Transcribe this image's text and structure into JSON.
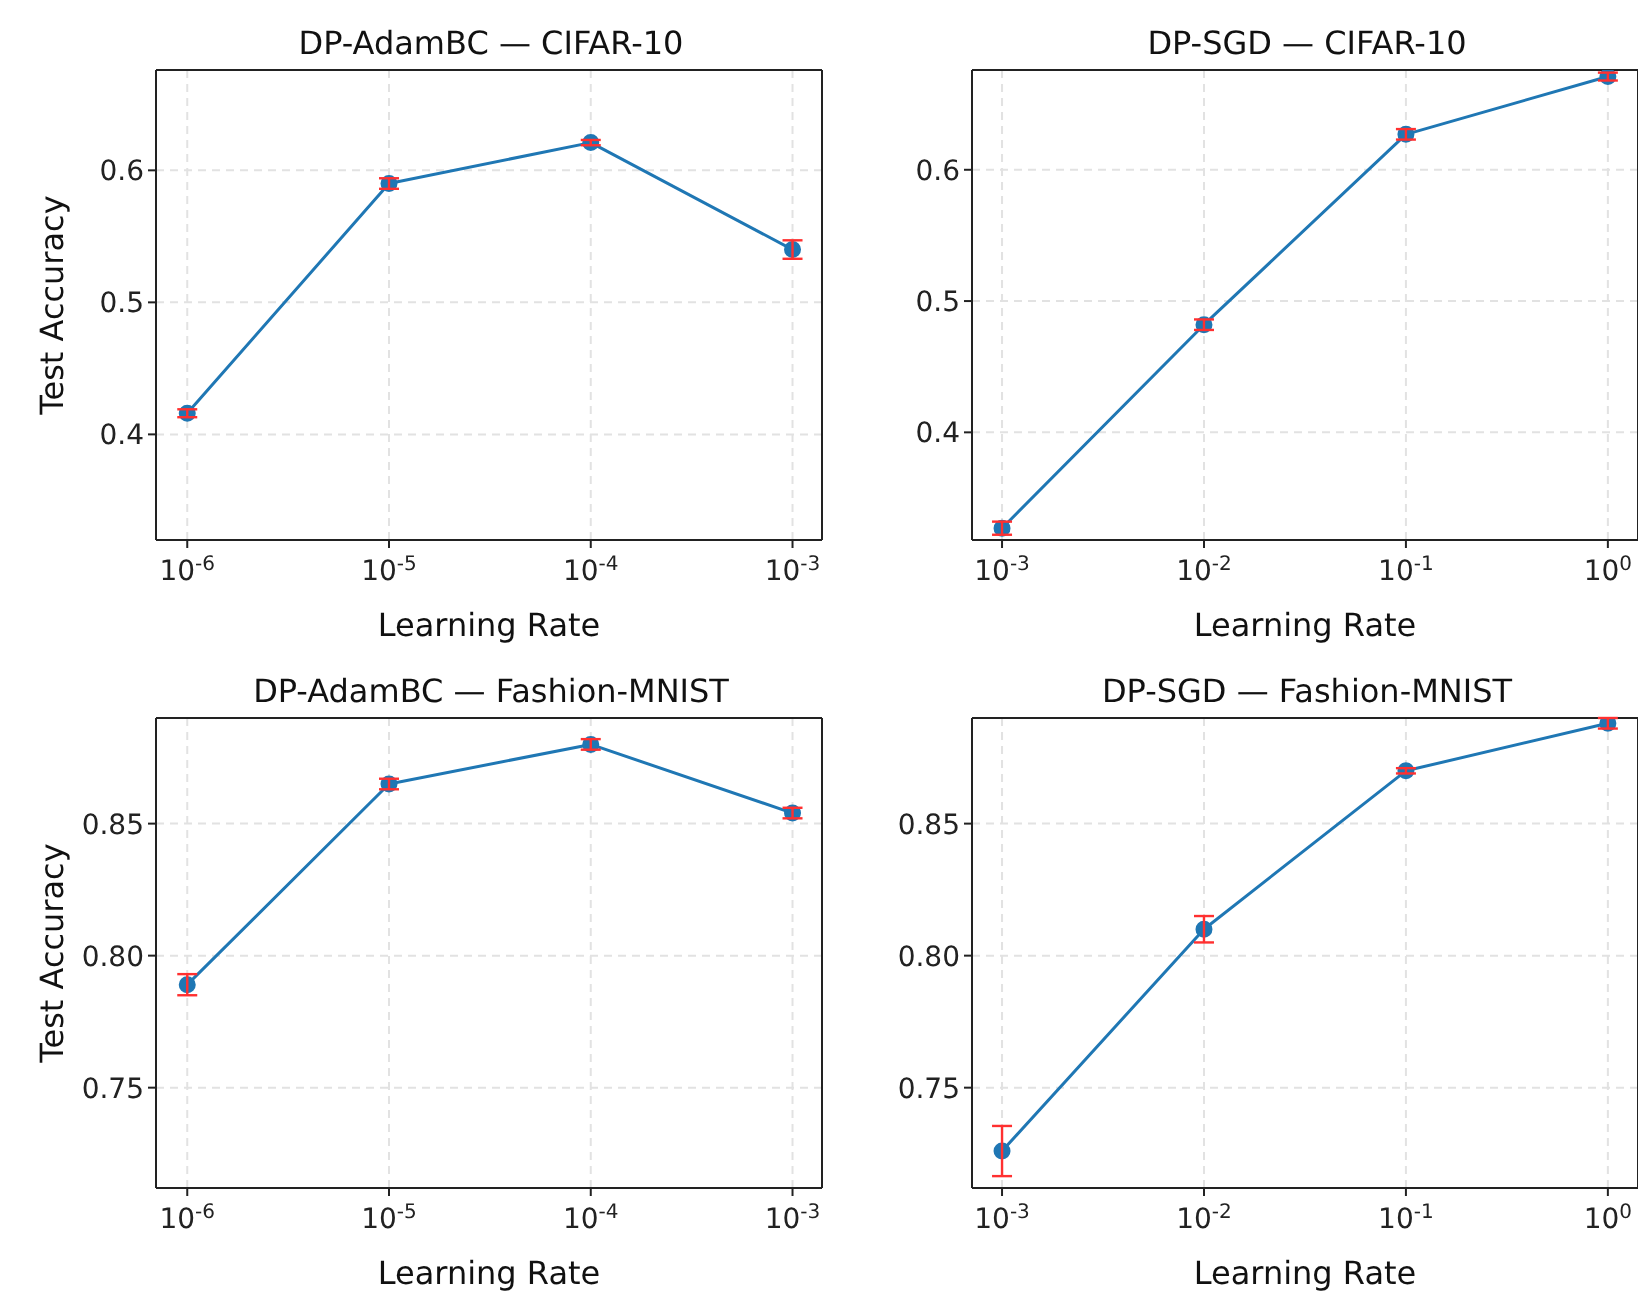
{
  "chart_data": [
    {
      "type": "line",
      "title": "DP-AdamBC — CIFAR-10",
      "xlabel": "Learning Rate",
      "ylabel": "Test Accuracy",
      "log": "x",
      "grid": true,
      "marker": "circle",
      "line_style": "solid",
      "legend": false,
      "x": [
        1e-06,
        1e-05,
        0.0001,
        0.001
      ],
      "xlim": [
        7e-07,
        0.0014
      ],
      "xticks": [
        {
          "value": 1e-06,
          "label": "10$^{-6}$"
        },
        {
          "value": 1e-05,
          "label": "10$^{-5}$"
        },
        {
          "value": 0.0001,
          "label": "10$^{-4}$"
        },
        {
          "value": 0.001,
          "label": "10$^{-3}$"
        }
      ],
      "ylim": [
        0.32,
        0.676
      ],
      "yticks": [
        0.4,
        0.5,
        0.6
      ],
      "series": [
        {
          "color": "#1f77b4",
          "values": [
            0.416,
            0.59,
            0.621,
            0.54
          ],
          "errors": [
            0.003,
            0.004,
            0.002,
            0.007
          ]
        }
      ]
    },
    {
      "type": "line",
      "title": "DP-SGD — CIFAR-10",
      "xlabel": "Learning Rate",
      "log": "x",
      "grid": true,
      "marker": "circle",
      "line_style": "solid",
      "legend": false,
      "x": [
        0.001,
        0.01,
        0.1,
        1
      ],
      "xlim": [
        0.00071,
        1.41
      ],
      "xticks": [
        {
          "value": 0.001,
          "label": "10$^{-3}$"
        },
        {
          "value": 0.01,
          "label": "10$^{-2}$"
        },
        {
          "value": 0.1,
          "label": "10$^{-1}$"
        },
        {
          "value": 1,
          "label": "10$^{0}$"
        }
      ],
      "ylim": [
        0.318,
        0.676
      ],
      "yticks": [
        0.4,
        0.5,
        0.6
      ],
      "series": [
        {
          "color": "#1f77b4",
          "values": [
            0.327,
            0.482,
            0.627,
            0.671
          ],
          "errors": [
            0.005,
            0.004,
            0.004,
            0.003
          ]
        }
      ]
    },
    {
      "type": "line",
      "title": "DP-AdamBC — Fashion-MNIST",
      "xlabel": "Learning Rate",
      "ylabel": "Test Accuracy",
      "log": "x",
      "grid": true,
      "marker": "circle",
      "line_style": "solid",
      "legend": false,
      "x": [
        1e-06,
        1e-05,
        0.0001,
        0.001
      ],
      "xlim": [
        7e-07,
        0.0014
      ],
      "xticks": [
        {
          "value": 1e-06,
          "label": "10$^{-6}$"
        },
        {
          "value": 1e-05,
          "label": "10$^{-5}$"
        },
        {
          "value": 0.0001,
          "label": "10$^{-4}$"
        },
        {
          "value": 0.001,
          "label": "10$^{-3}$"
        }
      ],
      "ylim": [
        0.712,
        0.89
      ],
      "yticks": [
        0.75,
        {
          "value": 0.8,
          "label": "0.80"
        },
        0.85
      ],
      "series": [
        {
          "color": "#1f77b4",
          "values": [
            0.789,
            0.865,
            0.88,
            0.854
          ],
          "errors": [
            0.004,
            0.002,
            0.002,
            0.002
          ]
        }
      ]
    },
    {
      "type": "line",
      "title": "DP-SGD — Fashion-MNIST",
      "xlabel": "Learning Rate",
      "log": "x",
      "grid": true,
      "marker": "circle",
      "line_style": "solid",
      "legend": false,
      "x": [
        0.001,
        0.01,
        0.1,
        1
      ],
      "xlim": [
        0.00071,
        1.41
      ],
      "xticks": [
        {
          "value": 0.001,
          "label": "10$^{-3}$"
        },
        {
          "value": 0.01,
          "label": "10$^{-2}$"
        },
        {
          "value": 0.1,
          "label": "10$^{-1}$"
        },
        {
          "value": 1,
          "label": "10$^{0}$"
        }
      ],
      "ylim": [
        0.712,
        0.89
      ],
      "yticks": [
        0.75,
        {
          "value": 0.8,
          "label": "0.80"
        },
        0.85
      ],
      "series": [
        {
          "color": "#1f77b4",
          "values": [
            0.726,
            0.81,
            0.87,
            0.888
          ],
          "errors": [
            0.0095,
            0.005,
            0.001,
            0.002
          ]
        }
      ]
    }
  ]
}
